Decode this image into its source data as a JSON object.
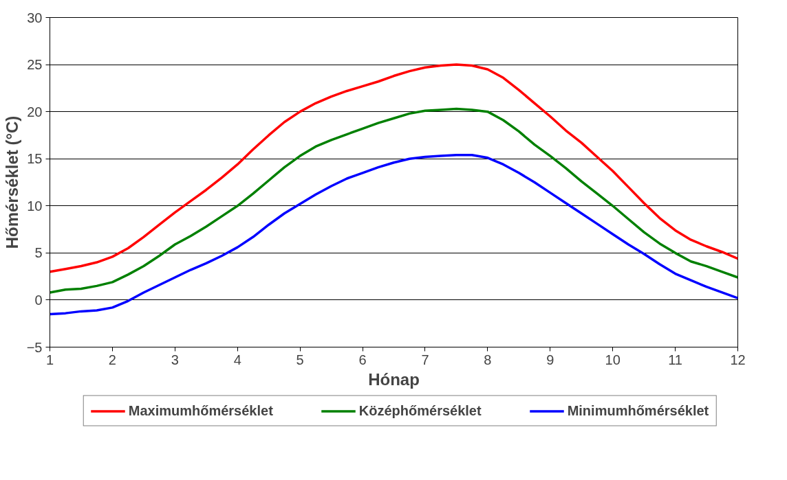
{
  "chart_data": {
    "type": "line",
    "xlabel": "Hónap",
    "ylabel": "Hőmérséklet (°C)",
    "x": [
      1,
      1.25,
      1.5,
      1.75,
      2,
      2.25,
      2.5,
      2.75,
      3,
      3.25,
      3.5,
      3.75,
      4,
      4.25,
      4.5,
      4.75,
      5,
      5.25,
      5.5,
      5.75,
      6,
      6.25,
      6.5,
      6.75,
      7,
      7.25,
      7.5,
      7.75,
      8,
      8.25,
      8.5,
      8.75,
      9,
      9.25,
      9.5,
      9.75,
      10,
      10.25,
      10.5,
      10.75,
      11,
      11.25,
      11.5,
      11.75,
      12
    ],
    "series": [
      {
        "name": "Maximumhőmérséklet",
        "color": "#ff0000",
        "values": [
          3.0,
          3.3,
          3.6,
          4.0,
          4.6,
          5.5,
          6.7,
          8.0,
          9.3,
          10.5,
          11.7,
          13.0,
          14.4,
          16.0,
          17.5,
          18.9,
          20.0,
          20.9,
          21.6,
          22.2,
          22.7,
          23.2,
          23.8,
          24.3,
          24.7,
          24.9,
          25.0,
          24.9,
          24.5,
          23.6,
          22.3,
          20.9,
          19.5,
          18.0,
          16.7,
          15.2,
          13.7,
          12.0,
          10.3,
          8.7,
          7.4,
          6.4,
          5.7,
          5.1,
          4.4
        ]
      },
      {
        "name": "Középhőmérséklet",
        "color": "#008000",
        "values": [
          0.8,
          1.1,
          1.2,
          1.5,
          1.9,
          2.7,
          3.6,
          4.7,
          5.9,
          6.8,
          7.8,
          8.9,
          10.0,
          11.3,
          12.7,
          14.1,
          15.3,
          16.3,
          17.0,
          17.6,
          18.2,
          18.8,
          19.3,
          19.8,
          20.1,
          20.2,
          20.3,
          20.2,
          20.0,
          19.1,
          17.9,
          16.5,
          15.3,
          14.0,
          12.6,
          11.3,
          10.0,
          8.6,
          7.2,
          6.0,
          5.0,
          4.1,
          3.6,
          3.0,
          2.4
        ]
      },
      {
        "name": "Minimumhőmérséklet",
        "color": "#0000ff",
        "values": [
          -1.5,
          -1.4,
          -1.2,
          -1.1,
          -0.8,
          -0.1,
          0.8,
          1.6,
          2.4,
          3.2,
          3.9,
          4.7,
          5.6,
          6.7,
          8.0,
          9.2,
          10.2,
          11.2,
          12.1,
          12.9,
          13.5,
          14.1,
          14.6,
          15.0,
          15.2,
          15.3,
          15.4,
          15.4,
          15.1,
          14.4,
          13.5,
          12.5,
          11.4,
          10.3,
          9.2,
          8.1,
          7.0,
          5.9,
          4.9,
          3.8,
          2.8,
          2.1,
          1.4,
          0.8,
          0.2
        ]
      }
    ],
    "xlim": [
      1,
      12
    ],
    "xticks": [
      1,
      2,
      3,
      4,
      5,
      6,
      7,
      8,
      9,
      10,
      11,
      12
    ],
    "ylim": [
      -5,
      30
    ],
    "yticks": [
      -5,
      0,
      5,
      10,
      15,
      20,
      25,
      30
    ],
    "grid": "y",
    "legend": "bottom",
    "marker": "none",
    "line_style": "solid"
  }
}
